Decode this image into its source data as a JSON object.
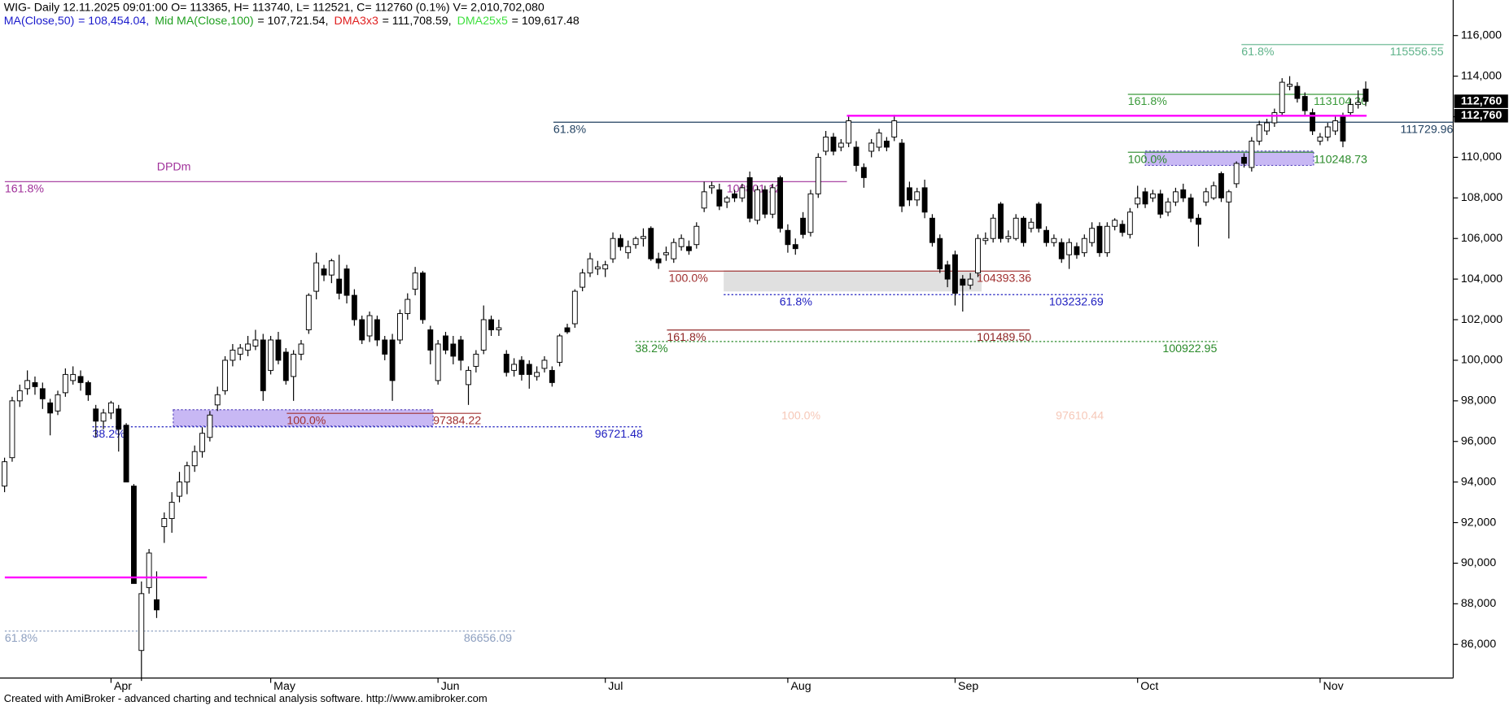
{
  "chart_data": {
    "type": "candlestick",
    "header": "WIG- Daily 12.11.2025 09:01:00 O= 113365, H= 113740, L= 112521, C= 112760 (0.1%) V= 2,010,702,080",
    "indicators": [
      {
        "name": "MA(Close,50)",
        "value": "= 108,454.04,",
        "color": "#1a1acc"
      },
      {
        "name": "Mid MA(Close,100)",
        "value": "= 107,721.54,",
        "color": "#20a020"
      },
      {
        "name": "DMA3x3",
        "value": "= 111,708.59,",
        "color": "#e02020"
      },
      {
        "name": "DMA25x5",
        "value": "= 109,617.48",
        "color": "#40e040"
      }
    ],
    "footer": "Created with AmiBroker - advanced charting and technical analysis software. http://www.amibroker.com",
    "annotation": "DPDm",
    "xlim": [
      -0.6,
      190.5
    ],
    "ylim": [
      84340,
      117750
    ],
    "xticks": [
      {
        "value": 14,
        "label": "Apr"
      },
      {
        "value": 35,
        "label": "May"
      },
      {
        "value": 57,
        "label": "Jun"
      },
      {
        "value": 79,
        "label": "Jul"
      },
      {
        "value": 103,
        "label": "Aug"
      },
      {
        "value": 125,
        "label": "Sep"
      },
      {
        "value": 149,
        "label": "Oct"
      },
      {
        "value": 173,
        "label": "Nov"
      }
    ],
    "yticks": [
      {
        "value": 86000,
        "label": "86,000"
      },
      {
        "value": 88000,
        "label": "88,000"
      },
      {
        "value": 90000,
        "label": "90,000"
      },
      {
        "value": 92000,
        "label": "92,000"
      },
      {
        "value": 94000,
        "label": "94,000"
      },
      {
        "value": 96000,
        "label": "96,000"
      },
      {
        "value": 98000,
        "label": "98,000"
      },
      {
        "value": 100000,
        "label": "100,000"
      },
      {
        "value": 102000,
        "label": "102,000"
      },
      {
        "value": 104000,
        "label": "104,000"
      },
      {
        "value": 106000,
        "label": "106,000"
      },
      {
        "value": 108000,
        "label": "108,000"
      },
      {
        "value": 110000,
        "label": "110,000"
      },
      {
        "value": 112000,
        "label": "112,000"
      },
      {
        "value": 114000,
        "label": "114,000"
      },
      {
        "value": 116000,
        "label": "116,000"
      }
    ],
    "up_color": "#ffffff",
    "down_color": "#000000",
    "ohlc": [
      [
        93800,
        95200,
        93500,
        95000
      ],
      [
        95200,
        98200,
        95000,
        98000
      ],
      [
        98000,
        98800,
        97700,
        98500
      ],
      [
        98600,
        99500,
        98300,
        99000
      ],
      [
        98900,
        99200,
        98300,
        98700
      ],
      [
        98600,
        98900,
        97600,
        98100
      ],
      [
        97900,
        98100,
        96300,
        97400
      ],
      [
        97500,
        98500,
        97300,
        98300
      ],
      [
        98400,
        99600,
        98200,
        99300
      ],
      [
        99000,
        99700,
        98800,
        99300
      ],
      [
        99200,
        99500,
        98500,
        98900
      ],
      [
        98900,
        99000,
        98000,
        98300
      ],
      [
        97600,
        97800,
        96200,
        97000
      ],
      [
        97000,
        97600,
        96600,
        97400
      ],
      [
        97400,
        98000,
        97100,
        97900
      ],
      [
        97600,
        97800,
        95500,
        96600
      ],
      [
        96800,
        96900,
        94000,
        94000
      ],
      [
        93800,
        93900,
        89000,
        89000
      ],
      [
        85700,
        89100,
        84200,
        88500
      ],
      [
        88800,
        90700,
        88500,
        90500
      ],
      [
        88200,
        89600,
        87300,
        87700
      ],
      [
        91800,
        92500,
        91000,
        92200
      ],
      [
        92200,
        93500,
        91500,
        93000
      ],
      [
        93300,
        94500,
        93000,
        94000
      ],
      [
        94000,
        95000,
        93400,
        94800
      ],
      [
        94800,
        95800,
        94500,
        95500
      ],
      [
        95500,
        96700,
        95200,
        96400
      ],
      [
        96200,
        97500,
        96000,
        97300
      ],
      [
        97800,
        98700,
        97500,
        98300
      ],
      [
        98500,
        100200,
        98300,
        100000
      ],
      [
        100000,
        100800,
        99700,
        100500
      ],
      [
        100300,
        100800,
        100000,
        100600
      ],
      [
        100500,
        101200,
        100200,
        100800
      ],
      [
        100700,
        101500,
        100500,
        101000
      ],
      [
        101000,
        101300,
        98000,
        98500
      ],
      [
        99500,
        101200,
        99300,
        101000
      ],
      [
        101000,
        101400,
        99800,
        100000
      ],
      [
        100400,
        100600,
        98800,
        99000
      ],
      [
        99200,
        100500,
        98000,
        100300
      ],
      [
        100300,
        101000,
        100000,
        100800
      ],
      [
        101500,
        103300,
        101300,
        103200
      ],
      [
        103400,
        105300,
        103000,
        104800
      ],
      [
        104500,
        104700,
        103900,
        104200
      ],
      [
        104200,
        105000,
        103800,
        104900
      ],
      [
        104000,
        105200,
        103000,
        103300
      ],
      [
        104500,
        104700,
        102800,
        103200
      ],
      [
        103200,
        103500,
        101700,
        102000
      ],
      [
        102000,
        102200,
        100800,
        101000
      ],
      [
        101200,
        102400,
        100900,
        102200
      ],
      [
        102000,
        102200,
        100700,
        101000
      ],
      [
        101000,
        101200,
        100000,
        100300
      ],
      [
        101000,
        101300,
        98000,
        99000
      ],
      [
        101000,
        102500,
        100800,
        102300
      ],
      [
        102300,
        103300,
        102000,
        103000
      ],
      [
        103500,
        104600,
        103200,
        104300
      ],
      [
        104300,
        104400,
        101800,
        102000
      ],
      [
        101500,
        101700,
        99800,
        100500
      ],
      [
        99000,
        101000,
        98800,
        100800
      ],
      [
        101200,
        101400,
        100300,
        100500
      ],
      [
        100800,
        101200,
        99800,
        100200
      ],
      [
        101000,
        101200,
        99500,
        100000
      ],
      [
        98800,
        99700,
        97800,
        99500
      ],
      [
        99700,
        100500,
        99400,
        100300
      ],
      [
        100500,
        102700,
        100300,
        102000
      ],
      [
        102000,
        102200,
        101200,
        101500
      ],
      [
        101500,
        102000,
        101200,
        101600
      ],
      [
        100300,
        100500,
        99200,
        99400
      ],
      [
        99500,
        100100,
        99200,
        99800
      ],
      [
        100000,
        100200,
        99000,
        99300
      ],
      [
        99800,
        100000,
        98600,
        99300
      ],
      [
        99200,
        99700,
        99000,
        99400
      ],
      [
        99600,
        100200,
        99400,
        100000
      ],
      [
        99500,
        99700,
        98700,
        98900
      ],
      [
        99900,
        101300,
        99700,
        101200
      ],
      [
        101600,
        101800,
        101300,
        101400
      ],
      [
        101800,
        103500,
        101600,
        103400
      ],
      [
        103600,
        104500,
        103400,
        104300
      ],
      [
        104300,
        105300,
        104100,
        105000
      ],
      [
        104500,
        104900,
        104200,
        104600
      ],
      [
        104500,
        104900,
        104100,
        104700
      ],
      [
        105000,
        106300,
        104800,
        106000
      ],
      [
        106000,
        106200,
        105400,
        105600
      ],
      [
        105300,
        105900,
        105000,
        105600
      ],
      [
        105700,
        106100,
        105500,
        106000
      ],
      [
        106000,
        106500,
        105600,
        106100
      ],
      [
        106500,
        106600,
        104900,
        105000
      ],
      [
        105000,
        105300,
        104500,
        104800
      ],
      [
        105200,
        105600,
        104900,
        105300
      ],
      [
        105000,
        106000,
        104800,
        105800
      ],
      [
        105600,
        106200,
        105400,
        106000
      ],
      [
        105600,
        105900,
        105200,
        105400
      ],
      [
        105700,
        106800,
        105500,
        106600
      ],
      [
        107500,
        108800,
        107300,
        108300
      ],
      [
        108500,
        108800,
        108200,
        108600
      ],
      [
        108400,
        108700,
        107400,
        107600
      ],
      [
        107800,
        108100,
        107500,
        108000
      ],
      [
        108200,
        108400,
        107800,
        108000
      ],
      [
        108000,
        108700,
        107800,
        108500
      ],
      [
        109000,
        109300,
        106800,
        107000
      ],
      [
        106900,
        108600,
        106700,
        108400
      ],
      [
        108400,
        108600,
        107000,
        107200
      ],
      [
        107200,
        108700,
        107000,
        108500
      ],
      [
        109000,
        109100,
        106300,
        106500
      ],
      [
        106400,
        106700,
        105300,
        105700
      ],
      [
        105700,
        106000,
        105200,
        105500
      ],
      [
        107000,
        107300,
        106000,
        106200
      ],
      [
        106300,
        108400,
        106100,
        108200
      ],
      [
        108200,
        110200,
        108000,
        110000
      ],
      [
        110300,
        111300,
        110100,
        111000
      ],
      [
        111000,
        111200,
        110100,
        110300
      ],
      [
        110500,
        110900,
        110300,
        110700
      ],
      [
        110700,
        112000,
        110500,
        111800
      ],
      [
        110500,
        110800,
        109300,
        109600
      ],
      [
        109500,
        109700,
        108500,
        109000
      ],
      [
        110300,
        110900,
        110000,
        110700
      ],
      [
        110500,
        111400,
        110300,
        111200
      ],
      [
        110800,
        111000,
        110300,
        110500
      ],
      [
        111000,
        112100,
        110800,
        111800
      ],
      [
        110700,
        110900,
        107300,
        107600
      ],
      [
        108500,
        108800,
        107600,
        107900
      ],
      [
        107900,
        108500,
        107600,
        108300
      ],
      [
        108500,
        108900,
        107000,
        107300
      ],
      [
        107000,
        107200,
        105600,
        105800
      ],
      [
        106000,
        106200,
        104300,
        104500
      ],
      [
        104700,
        104900,
        103600,
        104000
      ],
      [
        105200,
        105400,
        102700,
        103300
      ],
      [
        104000,
        104200,
        102400,
        103700
      ],
      [
        103700,
        104300,
        103500,
        104000
      ],
      [
        104300,
        106200,
        104100,
        106000
      ],
      [
        105900,
        106300,
        105700,
        106000
      ],
      [
        106000,
        107200,
        105800,
        107000
      ],
      [
        107700,
        107800,
        105800,
        106000
      ],
      [
        106000,
        106400,
        105800,
        106100
      ],
      [
        106000,
        107200,
        105900,
        107000
      ],
      [
        107000,
        107100,
        105600,
        105800
      ],
      [
        106500,
        107000,
        106300,
        106800
      ],
      [
        107700,
        107800,
        106300,
        106500
      ],
      [
        106400,
        106600,
        105600,
        105800
      ],
      [
        105800,
        106200,
        105600,
        106000
      ],
      [
        105800,
        106000,
        104800,
        105000
      ],
      [
        105200,
        106000,
        104500,
        105800
      ],
      [
        105600,
        105800,
        105000,
        105200
      ],
      [
        105300,
        106200,
        105100,
        106000
      ],
      [
        105800,
        106800,
        105600,
        106500
      ],
      [
        106600,
        106800,
        105100,
        105300
      ],
      [
        105300,
        106800,
        105100,
        106600
      ],
      [
        106600,
        107000,
        106400,
        106900
      ],
      [
        106700,
        106900,
        106100,
        106300
      ],
      [
        106200,
        107500,
        106000,
        107300
      ],
      [
        107700,
        108600,
        107500,
        108000
      ],
      [
        108300,
        108500,
        107500,
        107700
      ],
      [
        108000,
        108400,
        107800,
        108200
      ],
      [
        108200,
        108400,
        107000,
        107200
      ],
      [
        107300,
        108000,
        107100,
        107800
      ],
      [
        107800,
        108500,
        107600,
        108300
      ],
      [
        108400,
        108700,
        107800,
        108000
      ],
      [
        108000,
        108200,
        106800,
        107000
      ],
      [
        107000,
        107200,
        105600,
        106700
      ],
      [
        107800,
        108500,
        107600,
        108300
      ],
      [
        108000,
        108800,
        107900,
        108600
      ],
      [
        109200,
        109300,
        107800,
        108000
      ],
      [
        107800,
        108400,
        106000,
        108300
      ],
      [
        108700,
        109800,
        108500,
        109700
      ],
      [
        110000,
        110200,
        109500,
        109700
      ],
      [
        109500,
        111000,
        109300,
        110800
      ],
      [
        110800,
        111800,
        110600,
        111600
      ],
      [
        111300,
        111900,
        111100,
        111700
      ],
      [
        111700,
        112400,
        111500,
        112200
      ],
      [
        112200,
        113900,
        112000,
        113700
      ],
      [
        113500,
        114000,
        113300,
        113600
      ],
      [
        113500,
        113700,
        112700,
        112900
      ],
      [
        113000,
        113200,
        112100,
        112300
      ],
      [
        112200,
        112400,
        111100,
        111300
      ],
      [
        110800,
        111200,
        110600,
        111000
      ],
      [
        111000,
        111700,
        110800,
        111500
      ],
      [
        111300,
        112000,
        111100,
        111800
      ],
      [
        112000,
        112200,
        110500,
        110800
      ],
      [
        112200,
        112900,
        112000,
        112600
      ],
      [
        112600,
        113300,
        112400,
        112700
      ],
      [
        113365,
        113740,
        112521,
        112760
      ]
    ],
    "lines": [
      {
        "value": 112050,
        "color": "#ff00ff"
      },
      {
        "value": 89300,
        "color": "#ff00ff"
      }
    ],
    "levels": [
      {
        "value": 115556.55,
        "pct": "61.8%",
        "color": "#5fb38a",
        "dashed": false
      },
      {
        "value": {
          "value": 113104.3,
          "label": "113104.30"
        },
        "pct": "161.8%",
        "color": "#3a9a3a",
        "dashed": false
      },
      {
        "value": 111729.96,
        "pct": "61.8%",
        "color": "#1f3f5f",
        "dashed": false
      },
      {
        "value": 110248.73,
        "pct": "100.0%",
        "color": "#2a8a2a",
        "dashed": false
      },
      {
        "value": 108801.12,
        "pct": "161.8%",
        "color": "#a0309a",
        "dashed": false
      },
      {
        "value": 104393.36,
        "pct": "100.0%",
        "color": "#a03030",
        "dashed": false
      },
      {
        "value": 103232.69,
        "pct": "61.8%",
        "color": "#2020c0",
        "dashed": true
      },
      {
        "value": {
          "value": 101489.5,
          "label": "101489.50"
        },
        "pct": "161.8%",
        "color": "#902828",
        "dashed": false
      },
      {
        "value": 100922.95,
        "pct": "38.2%",
        "color": "#2a8a2a",
        "dashed": true
      },
      {
        "value": 97610.44,
        "pct": "100.0%",
        "color": "#f6c8b8",
        "dashed": false
      },
      {
        "value": 97384.22,
        "pct": "100.0%",
        "color": "#a03030",
        "dashed": false
      },
      {
        "value": 96721.48,
        "pct": "38.2%",
        "color": "#2020c0",
        "dashed": true
      },
      {
        "value": 86656.09,
        "pct": "61.8%",
        "color": "#8ea0c0",
        "dashed": true
      }
    ],
    "price_tags": [
      {
        "value": 112760,
        "label": "112,760"
      },
      {
        "value": 112760,
        "label": "112,760"
      }
    ]
  }
}
